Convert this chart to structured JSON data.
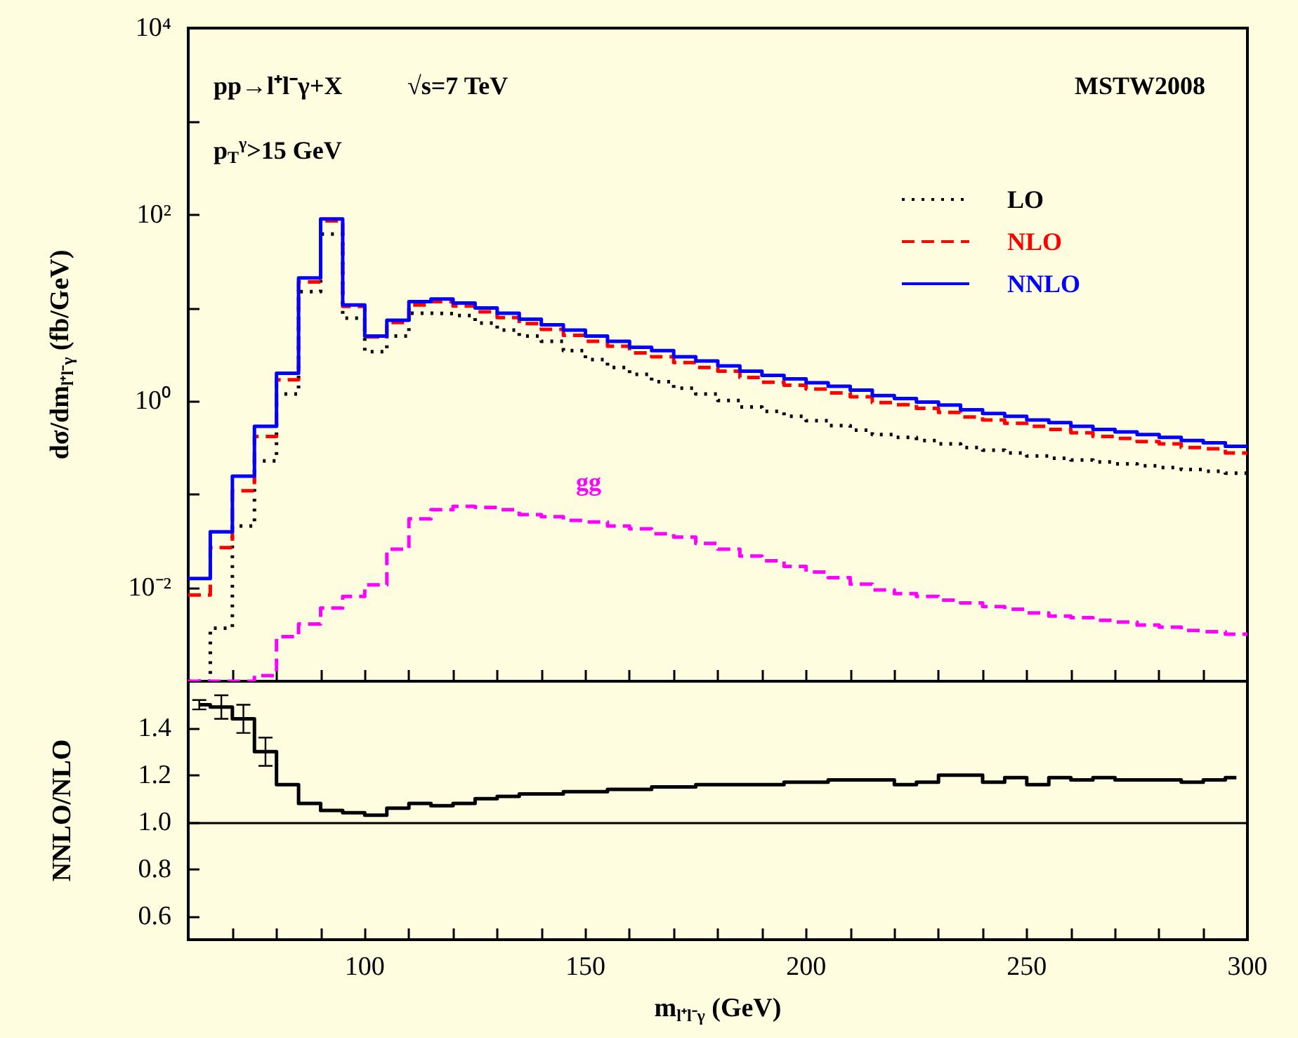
{
  "chart_data": [
    {
      "type": "histogram",
      "ylabel": "dσ/dm$_{l⁺l⁻γ}$ (fb/GeV)",
      "log": "y",
      "tick_labels": "y",
      "legend": "top right",
      "bins": [
        60,
        65,
        70,
        75,
        80,
        85,
        90,
        95,
        100,
        105,
        110,
        115,
        120,
        125,
        130,
        135,
        140,
        145,
        150,
        155,
        160,
        165,
        170,
        175,
        180,
        185,
        190,
        195,
        200,
        205,
        210,
        215,
        220,
        225,
        230,
        235,
        240,
        245,
        250,
        255,
        260,
        265,
        270,
        275,
        280,
        285,
        290,
        295,
        300
      ],
      "xlim": [
        60,
        300
      ],
      "xticks": [
        {
          "value": 70,
          "label": null
        },
        {
          "value": 80,
          "label": null
        },
        {
          "value": 90,
          "label": null
        },
        100,
        {
          "value": 110,
          "label": null
        },
        {
          "value": 120,
          "label": null
        },
        {
          "value": 130,
          "label": null
        },
        {
          "value": 140,
          "label": null
        },
        150,
        {
          "value": 160,
          "label": null
        },
        {
          "value": 170,
          "label": null
        },
        {
          "value": 180,
          "label": null
        },
        {
          "value": 190,
          "label": null
        },
        200,
        {
          "value": 210,
          "label": null
        },
        {
          "value": 220,
          "label": null
        },
        {
          "value": 230,
          "label": null
        },
        {
          "value": 240,
          "label": null
        },
        250,
        {
          "value": 260,
          "label": null
        },
        {
          "value": 270,
          "label": null
        },
        {
          "value": 280,
          "label": null
        },
        {
          "value": 290,
          "label": null
        },
        300
      ],
      "ylim": [
        0.001,
        10000
      ],
      "yticks": [
        {
          "value": 0.001,
          "label": null
        },
        {
          "value": 0.01,
          "label": "10⁻²"
        },
        {
          "value": 0.1,
          "label": null
        },
        {
          "value": 1,
          "label": "10⁰"
        },
        {
          "value": 10,
          "label": null
        },
        {
          "value": 100,
          "label": "10²"
        },
        {
          "value": 1000,
          "label": null
        },
        {
          "value": 10000,
          "label": "10⁴"
        }
      ],
      "annotations": [
        "pp→l⁺l⁻γ+X",
        "√s=7 TeV",
        "p$_{T}$$^{γ}$>15 GeV",
        "MSTW2008",
        "gg"
      ],
      "series": [
        {
          "name": "LO",
          "color": "#000000",
          "line_style": "dotted",
          "values": [
            0.001,
            0.0037,
            0.046,
            0.23,
            1.2,
            15,
            62,
            7.8,
            3.4,
            5.0,
            8.8,
            8.7,
            8.3,
            6.9,
            5.8,
            5.0,
            4.4,
            3.5,
            2.8,
            2.3,
            1.95,
            1.62,
            1.38,
            1.2,
            1.02,
            0.87,
            0.78,
            0.69,
            0.62,
            0.55,
            0.49,
            0.44,
            0.41,
            0.38,
            0.35,
            0.32,
            0.3,
            0.28,
            0.26,
            0.245,
            0.235,
            0.224,
            0.214,
            0.204,
            0.195,
            0.186,
            0.178,
            0.17
          ]
        },
        {
          "name": "NLO",
          "color": "#ff0000",
          "line_style": "dashed",
          "values": [
            0.0084,
            0.027,
            0.11,
            0.42,
            1.7,
            19,
            86,
            10.4,
            4.9,
            7.0,
            10.8,
            11.7,
            10.5,
            9.1,
            7.9,
            6.8,
            5.9,
            5.1,
            4.4,
            3.9,
            3.3,
            3.0,
            2.6,
            2.3,
            2.1,
            1.8,
            1.6,
            1.49,
            1.35,
            1.23,
            1.12,
            0.97,
            0.92,
            0.84,
            0.76,
            0.68,
            0.63,
            0.58,
            0.54,
            0.5,
            0.46,
            0.42,
            0.4,
            0.37,
            0.35,
            0.32,
            0.31,
            0.28
          ]
        },
        {
          "name": "NNLO",
          "color": "#0000ff",
          "line_style": "solid",
          "values": [
            0.0126,
            0.04,
            0.158,
            0.54,
            2.0,
            21,
            90,
            10.8,
            5.0,
            7.4,
            11.7,
            12.5,
            11.3,
            10.0,
            8.8,
            7.6,
            6.6,
            5.8,
            5.0,
            4.4,
            3.8,
            3.5,
            3.0,
            2.7,
            2.4,
            2.1,
            1.9,
            1.74,
            1.58,
            1.45,
            1.32,
            1.15,
            1.07,
            0.98,
            0.91,
            0.81,
            0.74,
            0.69,
            0.63,
            0.59,
            0.54,
            0.5,
            0.47,
            0.44,
            0.41,
            0.38,
            0.36,
            0.33
          ]
        },
        {
          "color": "#ff00ff",
          "line_style": "dashed",
          "values": [
            0.001,
            0.001,
            0.001,
            0.00115,
            0.003,
            0.0041,
            0.0061,
            0.0081,
            0.0108,
            0.026,
            0.055,
            0.069,
            0.075,
            0.073,
            0.069,
            0.061,
            0.058,
            0.053,
            0.051,
            0.046,
            0.043,
            0.038,
            0.035,
            0.03,
            0.026,
            0.022,
            0.0195,
            0.017,
            0.0148,
            0.0129,
            0.011,
            0.0095,
            0.0087,
            0.0081,
            0.0074,
            0.0069,
            0.0063,
            0.0059,
            0.0054,
            0.005,
            0.0048,
            0.0045,
            0.0043,
            0.004,
            0.0038,
            0.0035,
            0.0034,
            0.0032
          ]
        }
      ]
    },
    {
      "type": "step",
      "xlabel": "m$_{l⁺l⁻γ}$ (GeV)",
      "ylabel": "NNLO/NLO",
      "x": [
        62.5,
        67.5,
        72.5,
        77.5,
        82.5,
        87.5,
        92.5,
        97.5,
        102.5,
        107.5,
        112.5,
        117.5,
        122.5,
        127.5,
        132.5,
        137.5,
        142.5,
        147.5,
        152.5,
        157.5,
        162.5,
        167.5,
        172.5,
        177.5,
        182.5,
        187.5,
        192.5,
        197.5,
        202.5,
        207.5,
        212.5,
        217.5,
        222.5,
        227.5,
        232.5,
        237.5,
        242.5,
        247.5,
        252.5,
        257.5,
        262.5,
        267.5,
        272.5,
        277.5,
        282.5,
        287.5,
        292.5,
        297.5
      ],
      "xlim": [
        60,
        300
      ],
      "xticks": [
        {
          "value": 70,
          "label": null
        },
        {
          "value": 80,
          "label": null
        },
        {
          "value": 90,
          "label": null
        },
        100,
        {
          "value": 110,
          "label": null
        },
        {
          "value": 120,
          "label": null
        },
        {
          "value": 130,
          "label": null
        },
        {
          "value": 140,
          "label": null
        },
        150,
        {
          "value": 160,
          "label": null
        },
        {
          "value": 170,
          "label": null
        },
        {
          "value": 180,
          "label": null
        },
        {
          "value": 190,
          "label": null
        },
        200,
        {
          "value": 210,
          "label": null
        },
        {
          "value": 220,
          "label": null
        },
        {
          "value": 230,
          "label": null
        },
        {
          "value": 240,
          "label": null
        },
        250,
        {
          "value": 260,
          "label": null
        },
        {
          "value": 270,
          "label": null
        },
        {
          "value": 280,
          "label": null
        },
        {
          "value": 290,
          "label": null
        },
        300
      ],
      "ylim": [
        0.5,
        1.6
      ],
      "yticks": [
        0.6,
        0.8,
        {
          "value": 1,
          "label": "1.0"
        },
        1.2,
        1.4
      ],
      "ref_lines": [
        {
          "axis": "y",
          "value": 1
        }
      ],
      "series": [
        {
          "color": "#000000",
          "values": [
            1.5,
            1.49,
            1.44,
            1.3,
            1.16,
            1.08,
            1.05,
            1.04,
            1.03,
            1.06,
            1.08,
            1.07,
            1.08,
            1.1,
            1.11,
            1.12,
            1.12,
            1.13,
            1.13,
            1.14,
            1.14,
            1.15,
            1.15,
            1.16,
            1.16,
            1.16,
            1.16,
            1.17,
            1.17,
            1.18,
            1.18,
            1.18,
            1.16,
            1.17,
            1.2,
            1.2,
            1.17,
            1.19,
            1.16,
            1.19,
            1.18,
            1.19,
            1.18,
            1.18,
            1.18,
            1.17,
            1.18,
            1.19
          ],
          "errors": [
            0.02,
            0.05,
            0.06,
            0.06,
            null,
            null,
            null,
            null,
            null,
            null,
            null,
            null,
            null,
            null,
            null,
            null,
            null,
            null,
            null,
            null,
            null,
            null,
            null,
            null,
            null,
            null,
            null,
            null,
            null,
            null,
            null,
            null,
            null,
            null,
            null,
            null,
            null,
            null,
            null,
            null,
            null,
            null,
            null,
            null,
            null,
            null,
            null,
            null
          ]
        }
      ]
    }
  ]
}
